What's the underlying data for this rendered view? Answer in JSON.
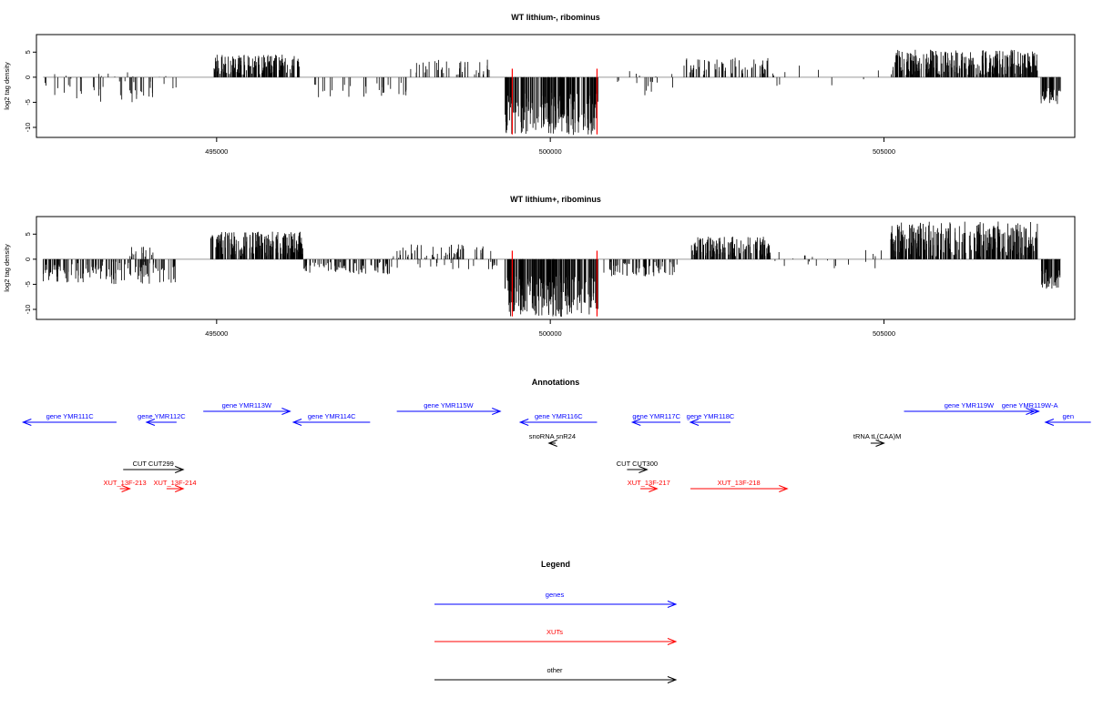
{
  "colors": {
    "gene": "#0000ff",
    "xut": "#ff0000",
    "other": "#000000",
    "baseline": "#9a9a9a",
    "marker": "#ff0000",
    "bars": "#000000"
  },
  "chart_data": [
    {
      "type": "bar",
      "title": "WT lithium-, ribominus",
      "ylabel": "log2 tag density",
      "xlim": [
        492300,
        507900
      ],
      "ylim": [
        -12,
        8.5
      ],
      "xticks": [
        495000,
        500000,
        505000
      ],
      "yticks": [
        5,
        0,
        -5,
        -10
      ],
      "grid": false,
      "marker_lines_x": [
        499430,
        500700
      ],
      "regions": [
        {
          "x0": 492400,
          "x1": 494400,
          "density": 0.18,
          "min": -5,
          "max": 1
        },
        {
          "x0": 494950,
          "x1": 496250,
          "density": 0.85,
          "min": 0.5,
          "max": 4.5
        },
        {
          "x0": 496250,
          "x1": 497900,
          "density": 0.12,
          "min": -4,
          "max": -1
        },
        {
          "x0": 497900,
          "x1": 499200,
          "density": 0.2,
          "min": 0.5,
          "max": 3.5
        },
        {
          "x0": 499320,
          "x1": 500720,
          "density": 1.0,
          "min": -11.5,
          "max": -3
        },
        {
          "x0": 501000,
          "x1": 501900,
          "density": 0.12,
          "min": -4,
          "max": 1.5
        },
        {
          "x0": 502000,
          "x1": 503300,
          "density": 0.35,
          "min": 0.5,
          "max": 4
        },
        {
          "x0": 503300,
          "x1": 505000,
          "density": 0.04,
          "min": -2,
          "max": 2.5
        },
        {
          "x0": 505100,
          "x1": 507300,
          "density": 0.95,
          "min": 0.5,
          "max": 5.5
        },
        {
          "x0": 507350,
          "x1": 507650,
          "density": 1.0,
          "min": -5.5,
          "max": -2
        }
      ]
    },
    {
      "type": "bar",
      "title": "WT lithium+, ribominus",
      "ylabel": "log2 tag density",
      "xlim": [
        492300,
        507900
      ],
      "ylim": [
        -12,
        8.5
      ],
      "xticks": [
        495000,
        500000,
        505000
      ],
      "yticks": [
        5,
        0,
        -5,
        -10
      ],
      "grid": false,
      "marker_lines_x": [
        499430,
        500700
      ],
      "regions": [
        {
          "x0": 492400,
          "x1": 494400,
          "density": 0.45,
          "min": -5,
          "max": -0.5
        },
        {
          "x0": 493700,
          "x1": 494100,
          "density": 0.25,
          "min": 0.5,
          "max": 2.5
        },
        {
          "x0": 494900,
          "x1": 496300,
          "density": 1.0,
          "min": 0.5,
          "max": 5.5
        },
        {
          "x0": 496300,
          "x1": 497600,
          "density": 0.45,
          "min": -3,
          "max": -0.5
        },
        {
          "x0": 497600,
          "x1": 499200,
          "density": 0.35,
          "min": -2,
          "max": 3
        },
        {
          "x0": 499320,
          "x1": 500720,
          "density": 1.0,
          "min": -11.5,
          "max": -3
        },
        {
          "x0": 500800,
          "x1": 501900,
          "density": 0.4,
          "min": -3.5,
          "max": -0.5
        },
        {
          "x0": 502100,
          "x1": 503300,
          "density": 0.8,
          "min": 0.5,
          "max": 4.5
        },
        {
          "x0": 503300,
          "x1": 505000,
          "density": 0.08,
          "min": -2,
          "max": 2
        },
        {
          "x0": 505100,
          "x1": 507300,
          "density": 1.0,
          "min": 0.5,
          "max": 7.5
        },
        {
          "x0": 507350,
          "x1": 507650,
          "density": 1.0,
          "min": -6,
          "max": -2
        }
      ]
    }
  ],
  "annotations": {
    "title": "Annotations",
    "items": [
      {
        "label": "gene YMR111C",
        "kind": "gene",
        "dir": "left",
        "x0": 492100,
        "x1": 493500,
        "row": 1
      },
      {
        "label": "gene YMR112C",
        "kind": "gene",
        "dir": "left",
        "x0": 493950,
        "x1": 494400,
        "row": 1
      },
      {
        "label": "gene YMR113W",
        "kind": "gene",
        "dir": "right",
        "x0": 494800,
        "x1": 496100,
        "row": 0
      },
      {
        "label": "gene YMR114C",
        "kind": "gene",
        "dir": "left",
        "x0": 496150,
        "x1": 497300,
        "row": 1
      },
      {
        "label": "gene YMR115W",
        "kind": "gene",
        "dir": "right",
        "x0": 497700,
        "x1": 499250,
        "row": 0
      },
      {
        "label": "gene YMR116C",
        "kind": "gene",
        "dir": "left",
        "x0": 499550,
        "x1": 500700,
        "row": 1
      },
      {
        "label": "snoRNA snR24",
        "kind": "other",
        "dir": "left",
        "x0": 499980,
        "x1": 500080,
        "row": 2
      },
      {
        "label": "gene YMR117C",
        "kind": "gene",
        "dir": "left",
        "x0": 501230,
        "x1": 501950,
        "row": 1
      },
      {
        "label": "gene YMR118C",
        "kind": "gene",
        "dir": "left",
        "x0": 502100,
        "x1": 502700,
        "row": 1
      },
      {
        "label": "tRNA tL(CAA)M",
        "kind": "other",
        "dir": "right",
        "x0": 504800,
        "x1": 505000,
        "row": 2
      },
      {
        "label": "gene YMR119W",
        "kind": "gene",
        "dir": "right",
        "x0": 505300,
        "x1": 507250,
        "row": 0
      },
      {
        "label": "gene YMR119W-A",
        "kind": "gene",
        "dir": "right",
        "x0": 507050,
        "x1": 507320,
        "row": 0
      },
      {
        "label": "gen",
        "kind": "gene",
        "dir": "left",
        "x0": 507420,
        "x1": 508100,
        "row": 1
      },
      {
        "label": "CUT CUT299",
        "kind": "other",
        "dir": "right",
        "x0": 493600,
        "x1": 494500,
        "row": 3
      },
      {
        "label": "CUT CUT300",
        "kind": "other",
        "dir": "right",
        "x0": 501150,
        "x1": 501450,
        "row": 3
      },
      {
        "label": "XUT_13F-213",
        "kind": "xut",
        "dir": "right",
        "x0": 493550,
        "x1": 493700,
        "row": 4
      },
      {
        "label": "XUT_13F-214",
        "kind": "xut",
        "dir": "right",
        "x0": 494250,
        "x1": 494500,
        "row": 4
      },
      {
        "label": "XUT_13F-217",
        "kind": "xut",
        "dir": "right",
        "x0": 501350,
        "x1": 501600,
        "row": 4
      },
      {
        "label": "XUT_13F-218",
        "kind": "xut",
        "dir": "right",
        "x0": 502100,
        "x1": 503550,
        "row": 4
      }
    ]
  },
  "legend": {
    "title": "Legend",
    "items": [
      {
        "label": "genes",
        "kind": "gene"
      },
      {
        "label": "XUTs",
        "kind": "xut"
      },
      {
        "label": "other",
        "kind": "other"
      }
    ]
  }
}
